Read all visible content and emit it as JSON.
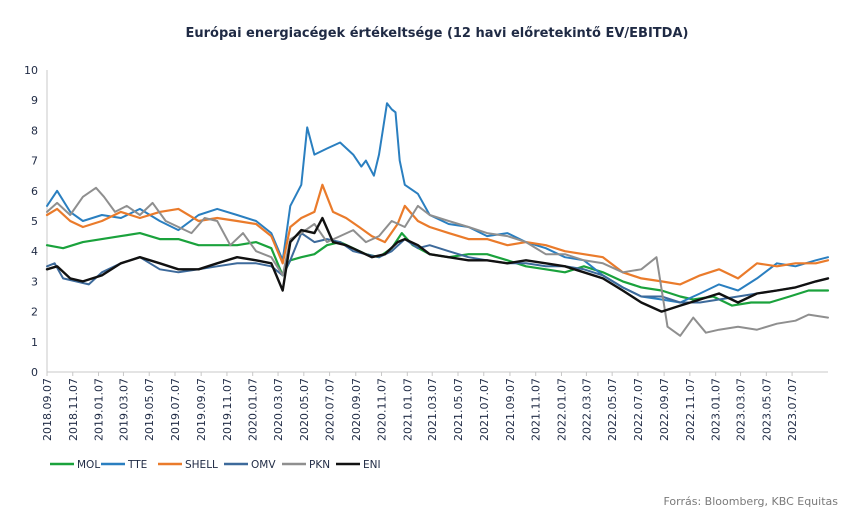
{
  "chart_data": {
    "type": "line",
    "title": "Európai energiacégek értékeltsége (12 havi előretekintő EV/EBITDA)",
    "source": "Forrás: Bloomberg,  KBC Equitas",
    "ylim": [
      0,
      10
    ],
    "y_ticks": [
      "0",
      "1",
      "2",
      "3",
      "4",
      "5",
      "6",
      "7",
      "8",
      "9",
      "10"
    ],
    "x_start": "2018-09-07",
    "x_end": "2023-09-30",
    "x_tick_labels": [
      "2018.09.07",
      "2018.11.07",
      "2019.01.07",
      "2019.03.07",
      "2019.05.07",
      "2019.07.07",
      "2019.09.07",
      "2019.11.07",
      "2020.01.07",
      "2020.03.07",
      "2020.05.07",
      "2020.07.07",
      "2020.09.07",
      "2020.11.07",
      "2021.01.07",
      "2021.03.07",
      "2021.05.07",
      "2021.07.07",
      "2021.09.07",
      "2021.11.07",
      "2022.01.07",
      "2022.03.07",
      "2022.05.07",
      "2022.07.07",
      "2022.09.07",
      "2022.11.07",
      "2023.01.07",
      "2023.03.07",
      "2023.05.07",
      "2023.07.07"
    ],
    "grid": false,
    "legend_position": "bottom-left",
    "series": [
      {
        "name": "MOL",
        "color": "#1aa23c",
        "width": 2.2,
        "x": [
          "2018-09-07",
          "2018-10-15",
          "2018-12-01",
          "2019-01-15",
          "2019-03-01",
          "2019-04-15",
          "2019-06-01",
          "2019-07-15",
          "2019-09-01",
          "2019-10-15",
          "2019-12-01",
          "2020-01-15",
          "2020-02-20",
          "2020-03-18",
          "2020-04-05",
          "2020-05-01",
          "2020-06-01",
          "2020-07-01",
          "2020-08-01",
          "2020-09-01",
          "2020-10-01",
          "2020-11-01",
          "2020-12-01",
          "2020-12-25",
          "2021-01-20",
          "2021-03-01",
          "2021-04-15",
          "2021-06-01",
          "2021-07-15",
          "2021-09-01",
          "2021-10-15",
          "2021-12-01",
          "2022-01-15",
          "2022-03-01",
          "2022-04-15",
          "2022-06-01",
          "2022-07-15",
          "2022-09-01",
          "2022-10-15",
          "2022-11-15",
          "2023-01-01",
          "2023-02-15",
          "2023-04-01",
          "2023-05-15",
          "2023-07-01",
          "2023-08-15",
          "2023-09-30"
        ],
        "y": [
          4.2,
          4.1,
          4.3,
          4.4,
          4.5,
          4.6,
          4.4,
          4.4,
          4.2,
          4.2,
          4.2,
          4.3,
          4.1,
          3.2,
          3.7,
          3.8,
          3.9,
          4.2,
          4.3,
          4.1,
          3.9,
          3.8,
          4.1,
          4.6,
          4.2,
          3.9,
          3.8,
          3.9,
          3.9,
          3.7,
          3.5,
          3.4,
          3.3,
          3.5,
          3.3,
          3.0,
          2.8,
          2.7,
          2.5,
          2.4,
          2.5,
          2.2,
          2.3,
          2.3,
          2.5,
          2.7,
          2.7
        ]
      },
      {
        "name": "TTE",
        "color": "#2a7fc0",
        "width": 2.0,
        "x": [
          "2018-09-07",
          "2018-10-01",
          "2018-11-01",
          "2018-12-01",
          "2019-01-15",
          "2019-03-01",
          "2019-04-15",
          "2019-06-01",
          "2019-07-15",
          "2019-09-01",
          "2019-10-15",
          "2019-12-01",
          "2020-01-15",
          "2020-02-20",
          "2020-03-18",
          "2020-04-05",
          "2020-05-01",
          "2020-05-15",
          "2020-06-01",
          "2020-07-01",
          "2020-08-01",
          "2020-09-01",
          "2020-09-20",
          "2020-10-01",
          "2020-10-20",
          "2020-11-01",
          "2020-11-10",
          "2020-11-20",
          "2020-12-01",
          "2020-12-10",
          "2020-12-20",
          "2021-01-01",
          "2021-02-01",
          "2021-03-01",
          "2021-04-15",
          "2021-06-01",
          "2021-07-15",
          "2021-09-01",
          "2021-10-15",
          "2021-12-01",
          "2022-01-15",
          "2022-03-01",
          "2022-04-15",
          "2022-06-01",
          "2022-07-15",
          "2022-09-01",
          "2022-10-15",
          "2022-12-01",
          "2023-01-15",
          "2023-03-01",
          "2023-04-15",
          "2023-06-01",
          "2023-07-15",
          "2023-09-01",
          "2023-09-30"
        ],
        "y": [
          5.5,
          6.0,
          5.3,
          5.0,
          5.2,
          5.1,
          5.4,
          5.0,
          4.7,
          5.2,
          5.4,
          5.2,
          5.0,
          4.6,
          3.7,
          5.5,
          6.2,
          8.1,
          7.2,
          7.4,
          7.6,
          7.2,
          6.8,
          7.0,
          6.5,
          7.2,
          8.0,
          8.9,
          8.7,
          8.6,
          7.0,
          6.2,
          5.9,
          5.2,
          4.9,
          4.8,
          4.5,
          4.6,
          4.3,
          4.1,
          3.8,
          3.7,
          3.2,
          2.8,
          2.5,
          2.4,
          2.3,
          2.6,
          2.9,
          2.7,
          3.1,
          3.6,
          3.5,
          3.7,
          3.8
        ]
      },
      {
        "name": "SHELL",
        "color": "#ea7b2b",
        "width": 2.2,
        "x": [
          "2018-09-07",
          "2018-10-01",
          "2018-11-01",
          "2018-12-01",
          "2019-01-15",
          "2019-03-01",
          "2019-04-15",
          "2019-06-01",
          "2019-07-15",
          "2019-09-01",
          "2019-10-15",
          "2019-12-01",
          "2020-01-15",
          "2020-02-20",
          "2020-03-18",
          "2020-04-05",
          "2020-05-01",
          "2020-06-01",
          "2020-06-20",
          "2020-07-15",
          "2020-08-15",
          "2020-09-15",
          "2020-10-15",
          "2020-11-15",
          "2020-12-15",
          "2021-01-01",
          "2021-02-01",
          "2021-03-01",
          "2021-04-15",
          "2021-06-01",
          "2021-07-15",
          "2021-09-01",
          "2021-10-15",
          "2021-12-01",
          "2022-01-15",
          "2022-03-01",
          "2022-04-15",
          "2022-06-01",
          "2022-07-15",
          "2022-09-01",
          "2022-10-15",
          "2022-12-01",
          "2023-01-15",
          "2023-03-01",
          "2023-04-15",
          "2023-06-01",
          "2023-07-15",
          "2023-09-01",
          "2023-09-30"
        ],
        "y": [
          5.2,
          5.4,
          5.0,
          4.8,
          5.0,
          5.3,
          5.1,
          5.3,
          5.4,
          5.0,
          5.1,
          5.0,
          4.9,
          4.5,
          3.6,
          4.8,
          5.1,
          5.3,
          6.2,
          5.3,
          5.1,
          4.8,
          4.5,
          4.3,
          4.9,
          5.5,
          5.0,
          4.8,
          4.6,
          4.4,
          4.4,
          4.2,
          4.3,
          4.2,
          4.0,
          3.9,
          3.8,
          3.3,
          3.1,
          3.0,
          2.9,
          3.2,
          3.4,
          3.1,
          3.6,
          3.5,
          3.6,
          3.6,
          3.7
        ]
      },
      {
        "name": "OMV",
        "color": "#3d6a9b",
        "width": 2.0,
        "x": [
          "2018-09-07",
          "2018-09-25",
          "2018-10-15",
          "2018-11-15",
          "2018-12-15",
          "2019-01-15",
          "2019-03-01",
          "2019-04-15",
          "2019-06-01",
          "2019-07-15",
          "2019-09-01",
          "2019-10-15",
          "2019-12-01",
          "2020-01-15",
          "2020-02-20",
          "2020-03-18",
          "2020-04-05",
          "2020-05-01",
          "2020-06-01",
          "2020-07-01",
          "2020-08-01",
          "2020-09-01",
          "2020-10-01",
          "2020-11-01",
          "2020-12-01",
          "2021-01-01",
          "2021-02-01",
          "2021-03-01",
          "2021-04-15",
          "2021-06-01",
          "2021-07-15",
          "2021-09-01",
          "2021-10-15",
          "2021-12-01",
          "2022-01-15",
          "2022-03-01",
          "2022-04-15",
          "2022-06-01",
          "2022-07-15",
          "2022-09-01",
          "2022-10-15",
          "2022-12-01",
          "2023-01-15",
          "2023-03-01",
          "2023-04-15",
          "2023-06-01",
          "2023-07-15",
          "2023-09-01",
          "2023-09-30"
        ],
        "y": [
          3.5,
          3.6,
          3.1,
          3.0,
          2.9,
          3.3,
          3.6,
          3.8,
          3.4,
          3.3,
          3.4,
          3.5,
          3.6,
          3.6,
          3.5,
          3.2,
          3.7,
          4.6,
          4.3,
          4.4,
          4.3,
          4.0,
          3.9,
          3.8,
          4.0,
          4.4,
          4.1,
          4.2,
          4.0,
          3.8,
          3.7,
          3.6,
          3.6,
          3.5,
          3.5,
          3.4,
          3.2,
          2.8,
          2.5,
          2.5,
          2.3,
          2.3,
          2.4,
          2.5,
          2.6,
          2.7,
          2.8,
          3.0,
          3.1
        ]
      },
      {
        "name": "PKN",
        "color": "#8f8f8f",
        "width": 2.0,
        "x": [
          "2018-09-07",
          "2018-10-01",
          "2018-11-01",
          "2018-12-01",
          "2019-01-01",
          "2019-01-20",
          "2019-02-15",
          "2019-03-15",
          "2019-04-15",
          "2019-05-15",
          "2019-06-15",
          "2019-07-15",
          "2019-08-15",
          "2019-09-15",
          "2019-10-15",
          "2019-11-15",
          "2019-12-15",
          "2020-01-15",
          "2020-02-20",
          "2020-03-18",
          "2020-04-05",
          "2020-05-01",
          "2020-06-01",
          "2020-07-01",
          "2020-08-01",
          "2020-09-01",
          "2020-10-01",
          "2020-11-01",
          "2020-12-01",
          "2021-01-01",
          "2021-02-01",
          "2021-03-01",
          "2021-04-15",
          "2021-06-01",
          "2021-07-15",
          "2021-09-01",
          "2021-10-15",
          "2021-12-01",
          "2022-01-15",
          "2022-03-01",
          "2022-04-15",
          "2022-06-01",
          "2022-07-15",
          "2022-08-20",
          "2022-09-15",
          "2022-10-15",
          "2022-11-15",
          "2022-12-15",
          "2023-01-15",
          "2023-03-01",
          "2023-04-15",
          "2023-06-01",
          "2023-07-15",
          "2023-08-15",
          "2023-09-30"
        ],
        "y": [
          5.3,
          5.6,
          5.2,
          5.8,
          6.1,
          5.8,
          5.3,
          5.5,
          5.2,
          5.6,
          5.0,
          4.8,
          4.6,
          5.1,
          5.0,
          4.2,
          4.6,
          4.0,
          3.8,
          3.2,
          4.4,
          4.6,
          4.9,
          4.3,
          4.5,
          4.7,
          4.3,
          4.5,
          5.0,
          4.8,
          5.5,
          5.2,
          5.0,
          4.8,
          4.6,
          4.5,
          4.3,
          3.9,
          3.9,
          3.7,
          3.6,
          3.3,
          3.4,
          3.8,
          1.5,
          1.2,
          1.8,
          1.3,
          1.4,
          1.5,
          1.4,
          1.6,
          1.7,
          1.9,
          1.8
        ]
      },
      {
        "name": "ENI",
        "color": "#111111",
        "width": 2.4,
        "x": [
          "2018-09-07",
          "2018-10-01",
          "2018-11-01",
          "2018-12-01",
          "2019-01-15",
          "2019-03-01",
          "2019-04-15",
          "2019-06-01",
          "2019-07-15",
          "2019-09-01",
          "2019-10-15",
          "2019-12-01",
          "2020-01-15",
          "2020-02-20",
          "2020-03-18",
          "2020-04-05",
          "2020-05-01",
          "2020-06-01",
          "2020-06-20",
          "2020-07-15",
          "2020-08-15",
          "2020-09-15",
          "2020-10-15",
          "2020-11-15",
          "2020-12-15",
          "2021-01-01",
          "2021-02-01",
          "2021-03-01",
          "2021-04-15",
          "2021-06-01",
          "2021-07-15",
          "2021-09-01",
          "2021-10-15",
          "2021-12-01",
          "2022-01-15",
          "2022-03-01",
          "2022-04-15",
          "2022-06-01",
          "2022-07-15",
          "2022-09-01",
          "2022-10-15",
          "2022-12-01",
          "2023-01-15",
          "2023-03-01",
          "2023-04-15",
          "2023-06-01",
          "2023-07-15",
          "2023-09-01",
          "2023-09-30"
        ],
        "y": [
          3.4,
          3.5,
          3.1,
          3.0,
          3.2,
          3.6,
          3.8,
          3.6,
          3.4,
          3.4,
          3.6,
          3.8,
          3.7,
          3.6,
          2.7,
          4.3,
          4.7,
          4.6,
          5.1,
          4.3,
          4.2,
          4.0,
          3.8,
          3.9,
          4.3,
          4.4,
          4.2,
          3.9,
          3.8,
          3.7,
          3.7,
          3.6,
          3.7,
          3.6,
          3.5,
          3.3,
          3.1,
          2.7,
          2.3,
          2.0,
          2.2,
          2.4,
          2.6,
          2.3,
          2.6,
          2.7,
          2.8,
          3.0,
          3.1
        ]
      }
    ]
  }
}
